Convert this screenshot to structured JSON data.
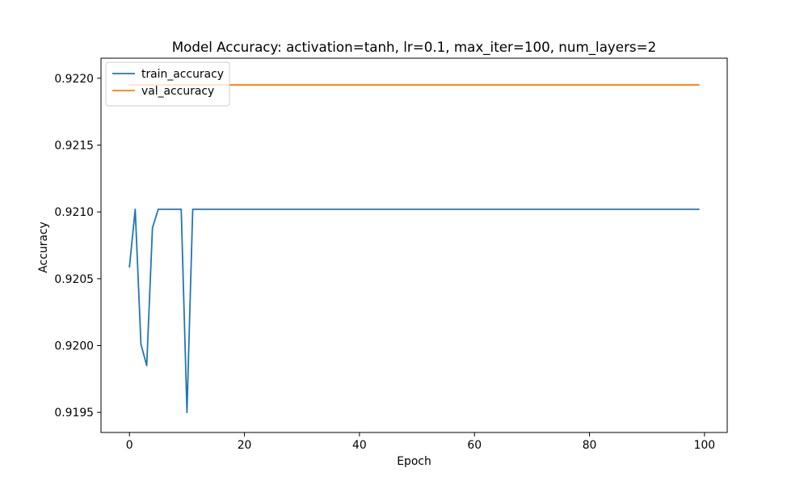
{
  "chart_data": {
    "type": "line",
    "title": "Model Accuracy: activation=tanh, lr=0.1, max_iter=100, num_layers=2",
    "xlabel": "Epoch",
    "ylabel": "Accuracy",
    "xlim": [
      -4.95,
      103.95
    ],
    "ylim": [
      0.91935,
      0.92215
    ],
    "x_ticks": [
      0,
      20,
      40,
      60,
      80,
      100
    ],
    "y_ticks": [
      0.9195,
      0.92,
      0.9205,
      0.921,
      0.9215,
      0.922
    ],
    "x_tick_labels": [
      "0",
      "20",
      "40",
      "60",
      "80",
      "100"
    ],
    "y_tick_labels": [
      "0.9195",
      "0.9200",
      "0.9205",
      "0.9210",
      "0.9215",
      "0.9220"
    ],
    "grid": false,
    "legend_placement": "upper-left",
    "series": [
      {
        "name": "train_accuracy",
        "color": "#1f77b4",
        "points": [
          [
            0,
            0.92059
          ],
          [
            1,
            0.92102
          ],
          [
            2,
            0.92001
          ],
          [
            3,
            0.91985
          ],
          [
            4,
            0.92088
          ],
          [
            5,
            0.92102
          ],
          [
            6,
            0.92102
          ],
          [
            7,
            0.92102
          ],
          [
            8,
            0.92102
          ],
          [
            9,
            0.92102
          ],
          [
            10,
            0.9195
          ],
          [
            11,
            0.92102
          ],
          [
            99,
            0.92102
          ]
        ]
      },
      {
        "name": "val_accuracy",
        "color": "#ff7f0e",
        "points": [
          [
            0,
            0.92195
          ],
          [
            99,
            0.92195
          ]
        ]
      }
    ]
  }
}
